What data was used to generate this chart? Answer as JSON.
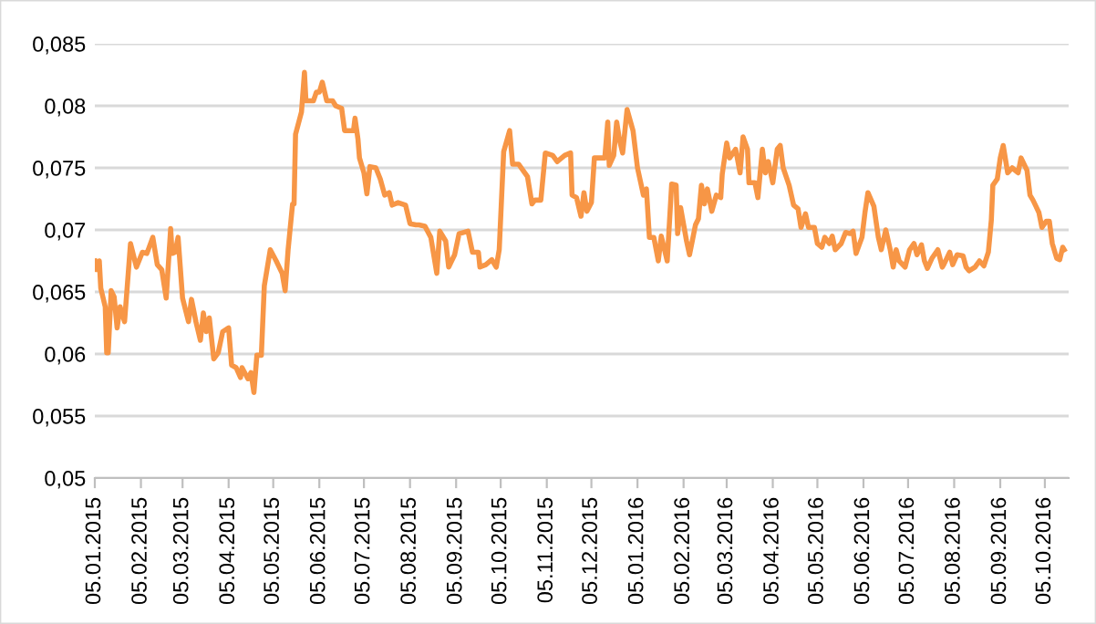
{
  "chart_data": {
    "type": "line",
    "grid": "y",
    "xlim": [
      "2015-01-05",
      "2016-10-21"
    ],
    "ylim": [
      0.05,
      0.085
    ],
    "yticks": [
      {
        "value": 0.05,
        "label": "0,05"
      },
      {
        "value": 0.055,
        "label": "0,055"
      },
      {
        "value": 0.06,
        "label": "0,06"
      },
      {
        "value": 0.065,
        "label": "0,065"
      },
      {
        "value": 0.07,
        "label": "0,07"
      },
      {
        "value": 0.075,
        "label": "0,075"
      },
      {
        "value": 0.08,
        "label": "0,08"
      },
      {
        "value": 0.085,
        "label": "0,085"
      }
    ],
    "xticks": [
      {
        "value": "2015-01-05",
        "label": "05.01.2015"
      },
      {
        "value": "2015-02-05",
        "label": "05.02.2015"
      },
      {
        "value": "2015-03-05",
        "label": "05.03.2015"
      },
      {
        "value": "2015-04-05",
        "label": "05.04.2015"
      },
      {
        "value": "2015-05-05",
        "label": "05.05.2015"
      },
      {
        "value": "2015-06-05",
        "label": "05.06.2015"
      },
      {
        "value": "2015-07-05",
        "label": "05.07.2015"
      },
      {
        "value": "2015-08-05",
        "label": "05.08.2015"
      },
      {
        "value": "2015-09-05",
        "label": "05.09.2015"
      },
      {
        "value": "2015-10-05",
        "label": "05.10.2015"
      },
      {
        "value": "2015-11-05",
        "label": "05.11.2015"
      },
      {
        "value": "2015-12-05",
        "label": "05.12.2015"
      },
      {
        "value": "2016-01-05",
        "label": "05.01.2016"
      },
      {
        "value": "2016-02-05",
        "label": "05.02.2016"
      },
      {
        "value": "2016-03-05",
        "label": "05.03.2016"
      },
      {
        "value": "2016-04-05",
        "label": "05.04.2016"
      },
      {
        "value": "2016-05-05",
        "label": "05.05.2016"
      },
      {
        "value": "2016-06-05",
        "label": "05.06.2016"
      },
      {
        "value": "2016-07-05",
        "label": "05.07.2016"
      },
      {
        "value": "2016-08-05",
        "label": "05.08.2016"
      },
      {
        "value": "2016-09-05",
        "label": "05.09.2016"
      },
      {
        "value": "2016-10-05",
        "label": "05.10.2016"
      }
    ],
    "series": [
      {
        "color": "#f79646",
        "x": [
          "2015-01-05",
          "2015-01-06",
          "2015-01-08",
          "2015-01-09",
          "2015-01-12",
          "2015-01-13",
          "2015-01-14",
          "2015-01-16",
          "2015-01-18",
          "2015-01-20",
          "2015-01-22",
          "2015-01-25",
          "2015-01-29",
          "2015-02-02",
          "2015-02-06",
          "2015-02-09",
          "2015-02-13",
          "2015-02-16",
          "2015-02-19",
          "2015-02-22",
          "2015-02-25",
          "2015-02-26",
          "2015-02-28",
          "2015-03-02",
          "2015-03-05",
          "2015-03-09",
          "2015-03-11",
          "2015-03-14",
          "2015-03-17",
          "2015-03-19",
          "2015-03-21",
          "2015-03-23",
          "2015-03-26",
          "2015-03-29",
          "2015-04-01",
          "2015-04-05",
          "2015-04-07",
          "2015-04-10",
          "2015-04-13",
          "2015-04-14",
          "2015-04-18",
          "2015-04-20",
          "2015-04-22",
          "2015-04-24",
          "2015-04-27",
          "2015-04-29",
          "2015-05-03",
          "2015-05-07",
          "2015-05-11",
          "2015-05-13",
          "2015-05-15",
          "2015-05-18",
          "2015-05-19",
          "2015-05-20",
          "2015-05-24",
          "2015-05-26",
          "2015-05-27",
          "2015-06-01",
          "2015-06-03",
          "2015-06-05",
          "2015-06-07",
          "2015-06-10",
          "2015-06-14",
          "2015-06-16",
          "2015-06-20",
          "2015-06-22",
          "2015-06-28",
          "2015-06-29",
          "2015-07-01",
          "2015-07-02",
          "2015-07-05",
          "2015-07-07",
          "2015-07-09",
          "2015-07-13",
          "2015-07-16",
          "2015-07-19",
          "2015-07-22",
          "2015-07-24",
          "2015-07-28",
          "2015-08-02",
          "2015-08-05",
          "2015-08-09",
          "2015-08-11",
          "2015-08-15",
          "2015-08-19",
          "2015-08-23",
          "2015-08-25",
          "2015-08-29",
          "2015-08-31",
          "2015-09-04",
          "2015-09-07",
          "2015-09-13",
          "2015-09-16",
          "2015-09-20",
          "2015-09-21",
          "2015-09-25",
          "2015-09-29",
          "2015-10-02",
          "2015-10-04",
          "2015-10-07",
          "2015-10-11",
          "2015-10-13",
          "2015-10-17",
          "2015-10-23",
          "2015-10-26",
          "2015-10-28",
          "2015-11-01",
          "2015-11-04",
          "2015-11-09",
          "2015-11-12",
          "2015-11-17",
          "2015-11-21",
          "2015-11-22",
          "2015-11-25",
          "2015-11-28",
          "2015-11-30",
          "2015-12-02",
          "2015-12-05",
          "2015-12-07",
          "2015-12-14",
          "2015-12-16",
          "2015-12-17",
          "2015-12-20",
          "2015-12-22",
          "2015-12-24",
          "2015-12-26",
          "2015-12-29",
          "2016-01-02",
          "2016-01-05",
          "2016-01-09",
          "2016-01-11",
          "2016-01-13",
          "2016-01-16",
          "2016-01-19",
          "2016-01-21",
          "2016-01-25",
          "2016-01-28",
          "2016-01-31",
          "2016-02-01",
          "2016-02-03",
          "2016-02-07",
          "2016-02-09",
          "2016-02-13",
          "2016-02-15",
          "2016-02-17",
          "2016-02-19",
          "2016-02-21",
          "2016-02-24",
          "2016-02-27",
          "2016-03-01",
          "2016-03-02",
          "2016-03-05",
          "2016-03-07",
          "2016-03-11",
          "2016-03-14",
          "2016-03-16",
          "2016-03-19",
          "2016-03-20",
          "2016-03-24",
          "2016-03-26",
          "2016-03-29",
          "2016-03-31",
          "2016-04-02",
          "2016-04-05",
          "2016-04-08",
          "2016-04-10",
          "2016-04-12",
          "2016-04-16",
          "2016-04-19",
          "2016-04-22",
          "2016-04-24",
          "2016-04-27",
          "2016-04-29",
          "2016-05-03",
          "2016-05-05",
          "2016-05-08",
          "2016-05-10",
          "2016-05-13",
          "2016-05-15",
          "2016-05-17",
          "2016-05-21",
          "2016-05-24",
          "2016-05-27",
          "2016-05-29",
          "2016-05-31",
          "2016-06-04",
          "2016-06-06",
          "2016-06-08",
          "2016-06-12",
          "2016-06-15",
          "2016-06-17",
          "2016-06-20",
          "2016-06-23",
          "2016-06-25",
          "2016-06-27",
          "2016-06-29",
          "2016-07-03",
          "2016-07-06",
          "2016-07-09",
          "2016-07-11",
          "2016-07-14",
          "2016-07-16",
          "2016-07-18",
          "2016-07-21",
          "2016-07-25",
          "2016-07-28",
          "2016-07-29",
          "2016-08-02",
          "2016-08-04",
          "2016-08-07",
          "2016-08-11",
          "2016-08-13",
          "2016-08-15",
          "2016-08-19",
          "2016-08-22",
          "2016-08-25",
          "2016-08-28",
          "2016-08-30",
          "2016-08-31",
          "2016-09-03",
          "2016-09-05",
          "2016-09-07",
          "2016-09-10",
          "2016-09-13",
          "2016-09-17",
          "2016-09-19",
          "2016-09-23",
          "2016-09-25",
          "2016-09-27",
          "2016-09-29",
          "2016-10-01",
          "2016-10-03",
          "2016-10-06",
          "2016-10-08",
          "2016-10-10",
          "2016-10-13",
          "2016-10-15",
          "2016-10-17",
          "2016-10-18"
        ],
        "values": [
          0.0675,
          0.0668,
          0.0675,
          0.0653,
          0.0638,
          0.0601,
          0.0601,
          0.0651,
          0.0646,
          0.0621,
          0.0638,
          0.0626,
          0.0689,
          0.067,
          0.0682,
          0.0681,
          0.0694,
          0.0672,
          0.0668,
          0.0645,
          0.0701,
          0.0681,
          0.0682,
          0.0694,
          0.0645,
          0.0626,
          0.0644,
          0.0626,
          0.0611,
          0.0633,
          0.0618,
          0.0629,
          0.0596,
          0.0601,
          0.0618,
          0.0621,
          0.0591,
          0.0589,
          0.0581,
          0.0589,
          0.058,
          0.0585,
          0.0569,
          0.0599,
          0.0599,
          0.0655,
          0.0684,
          0.0675,
          0.0665,
          0.0651,
          0.0684,
          0.0721,
          0.0721,
          0.0777,
          0.0795,
          0.0827,
          0.0804,
          0.0804,
          0.0811,
          0.0811,
          0.0819,
          0.0804,
          0.0804,
          0.08,
          0.0798,
          0.078,
          0.078,
          0.079,
          0.0773,
          0.0758,
          0.0746,
          0.0729,
          0.0751,
          0.075,
          0.0741,
          0.0728,
          0.073,
          0.072,
          0.0722,
          0.072,
          0.0705,
          0.0704,
          0.0704,
          0.0703,
          0.0694,
          0.0665,
          0.0699,
          0.0691,
          0.067,
          0.068,
          0.0697,
          0.0699,
          0.0682,
          0.0682,
          0.067,
          0.0672,
          0.0676,
          0.067,
          0.0684,
          0.0763,
          0.078,
          0.0753,
          0.0753,
          0.0743,
          0.0721,
          0.0724,
          0.0724,
          0.0762,
          0.076,
          0.0755,
          0.076,
          0.0762,
          0.0728,
          0.0726,
          0.0711,
          0.073,
          0.0715,
          0.0722,
          0.0758,
          0.0758,
          0.0787,
          0.0752,
          0.076,
          0.0787,
          0.0772,
          0.0762,
          0.0797,
          0.078,
          0.075,
          0.0728,
          0.0733,
          0.0694,
          0.0694,
          0.0675,
          0.0695,
          0.0675,
          0.0737,
          0.0736,
          0.0697,
          0.0718,
          0.0691,
          0.068,
          0.0704,
          0.0709,
          0.0736,
          0.0721,
          0.0733,
          0.0715,
          0.0728,
          0.0726,
          0.0745,
          0.077,
          0.0758,
          0.0765,
          0.0746,
          0.0775,
          0.0765,
          0.0738,
          0.0738,
          0.0726,
          0.0765,
          0.0746,
          0.0755,
          0.0738,
          0.0765,
          0.0768,
          0.075,
          0.0736,
          0.072,
          0.0717,
          0.0702,
          0.0713,
          0.0702,
          0.0702,
          0.0689,
          0.0686,
          0.0694,
          0.0689,
          0.0695,
          0.0684,
          0.0689,
          0.0698,
          0.0697,
          0.0699,
          0.0681,
          0.0694,
          0.0714,
          0.073,
          0.0719,
          0.0694,
          0.0684,
          0.07,
          0.0684,
          0.067,
          0.0684,
          0.0675,
          0.067,
          0.0684,
          0.0689,
          0.068,
          0.0688,
          0.0675,
          0.0669,
          0.0677,
          0.0684,
          0.067,
          0.0672,
          0.0682,
          0.0672,
          0.068,
          0.0679,
          0.067,
          0.0667,
          0.067,
          0.0675,
          0.0671,
          0.0682,
          0.0708,
          0.0736,
          0.0741,
          0.0758,
          0.0768,
          0.0746,
          0.075,
          0.0746,
          0.0758,
          0.0748,
          0.0728,
          0.0724,
          0.0719,
          0.0714,
          0.0702,
          0.0707,
          0.0707,
          0.0689,
          0.0677,
          0.0676,
          0.0686,
          0.0684
        ]
      }
    ]
  }
}
